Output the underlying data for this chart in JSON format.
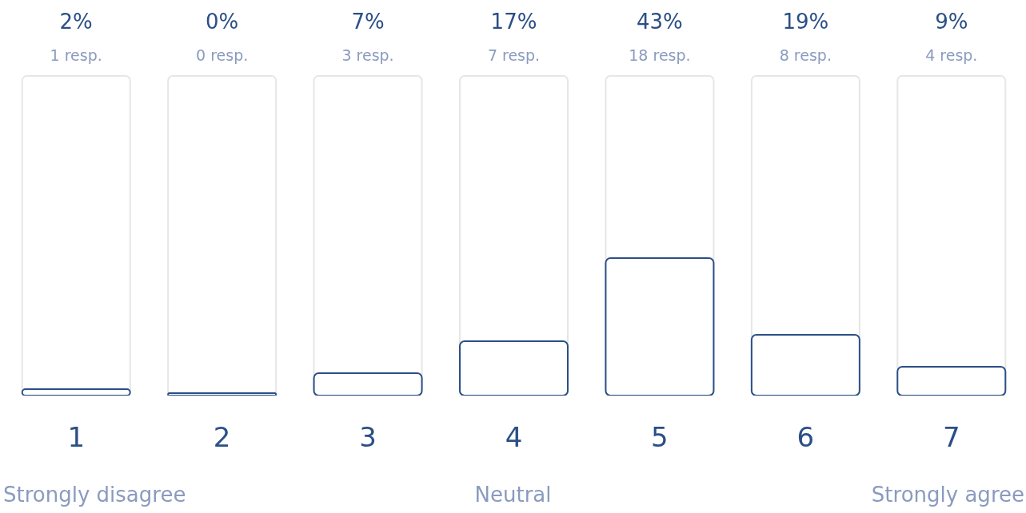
{
  "chart_data": {
    "type": "bar",
    "categories": [
      "1",
      "2",
      "3",
      "4",
      "5",
      "6",
      "7"
    ],
    "values": [
      2,
      0,
      7,
      17,
      43,
      19,
      9
    ],
    "value_labels": [
      "2%",
      "0%",
      "7%",
      "17%",
      "43%",
      "19%",
      "9%"
    ],
    "color": "#2b4f86",
    "tick_labels": "x",
    "annotations": [
      "1 resp.",
      "0 resp.",
      "3 resp.",
      "7 resp.",
      "18 resp.",
      "8 resp.",
      "4 resp.",
      "Strongly disagree",
      "Neutral",
      "Strongly agree"
    ]
  }
}
